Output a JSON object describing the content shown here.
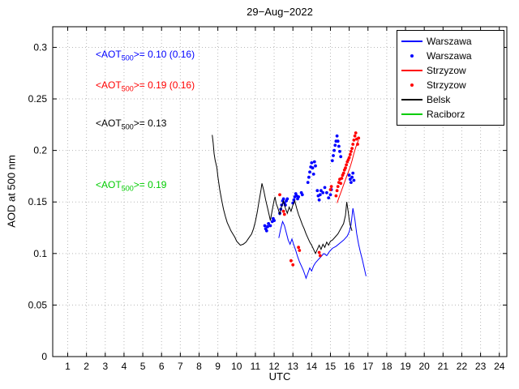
{
  "chart_data": {
    "type": "line",
    "title": "29−Aug−2022",
    "xlabel": "UTC",
    "ylabel": "AOD at 500 nm",
    "xlim": [
      0.2,
      24.4
    ],
    "ylim": [
      0,
      0.32
    ],
    "xticks": [
      1,
      2,
      3,
      4,
      5,
      6,
      7,
      8,
      9,
      10,
      11,
      12,
      13,
      14,
      15,
      16,
      17,
      18,
      19,
      20,
      21,
      22,
      23,
      24
    ],
    "yticks": [
      0,
      0.05,
      0.1,
      0.15,
      0.2,
      0.25,
      0.3
    ],
    "ytick_labels": [
      "0",
      "0.05",
      "0.1",
      "0.15",
      "0.2",
      "0.25",
      "0.3"
    ],
    "grid": true,
    "legend_position": "top-right",
    "series": [
      {
        "name": "Warszawa",
        "style": "line",
        "color": "#0000ff",
        "points": [
          [
            12.25,
            0.115
          ],
          [
            12.35,
            0.124
          ],
          [
            12.45,
            0.131
          ],
          [
            12.55,
            0.127
          ],
          [
            12.65,
            0.12
          ],
          [
            12.75,
            0.113
          ],
          [
            12.85,
            0.109
          ],
          [
            12.95,
            0.114
          ],
          [
            13.05,
            0.108
          ],
          [
            13.15,
            0.103
          ],
          [
            13.25,
            0.097
          ],
          [
            13.35,
            0.092
          ],
          [
            13.45,
            0.088
          ],
          [
            13.55,
            0.084
          ],
          [
            13.65,
            0.079
          ],
          [
            13.7,
            0.076
          ],
          [
            13.8,
            0.081
          ],
          [
            13.9,
            0.086
          ],
          [
            14.0,
            0.083
          ],
          [
            14.1,
            0.088
          ],
          [
            14.2,
            0.091
          ],
          [
            14.35,
            0.094
          ],
          [
            14.5,
            0.097
          ],
          [
            14.65,
            0.1
          ],
          [
            14.8,
            0.098
          ],
          [
            14.95,
            0.102
          ],
          [
            15.1,
            0.105
          ],
          [
            15.3,
            0.107
          ],
          [
            15.5,
            0.11
          ],
          [
            15.7,
            0.113
          ],
          [
            15.9,
            0.117
          ],
          [
            16.0,
            0.121
          ],
          [
            16.1,
            0.128
          ],
          [
            16.2,
            0.144
          ],
          [
            16.3,
            0.133
          ],
          [
            16.4,
            0.119
          ],
          [
            16.5,
            0.109
          ],
          [
            16.6,
            0.101
          ],
          [
            16.7,
            0.094
          ],
          [
            16.8,
            0.086
          ],
          [
            16.9,
            0.078
          ]
        ]
      },
      {
        "name": "Warszawa",
        "style": "scatter",
        "color": "#0000ff",
        "points": [
          [
            11.5,
            0.127
          ],
          [
            11.55,
            0.124
          ],
          [
            11.6,
            0.122
          ],
          [
            11.65,
            0.126
          ],
          [
            11.7,
            0.129
          ],
          [
            11.8,
            0.127
          ],
          [
            11.9,
            0.131
          ],
          [
            11.95,
            0.134
          ],
          [
            12.0,
            0.132
          ],
          [
            12.3,
            0.139
          ],
          [
            12.35,
            0.143
          ],
          [
            12.4,
            0.147
          ],
          [
            12.45,
            0.151
          ],
          [
            12.5,
            0.153
          ],
          [
            12.55,
            0.149
          ],
          [
            12.6,
            0.147
          ],
          [
            12.65,
            0.151
          ],
          [
            12.7,
            0.153
          ],
          [
            13.0,
            0.149
          ],
          [
            13.05,
            0.152
          ],
          [
            13.1,
            0.155
          ],
          [
            13.15,
            0.158
          ],
          [
            13.2,
            0.156
          ],
          [
            13.25,
            0.153
          ],
          [
            13.3,
            0.155
          ],
          [
            13.45,
            0.159
          ],
          [
            13.5,
            0.157
          ],
          [
            13.8,
            0.169
          ],
          [
            13.85,
            0.174
          ],
          [
            13.9,
            0.179
          ],
          [
            13.95,
            0.184
          ],
          [
            14.0,
            0.188
          ],
          [
            14.05,
            0.183
          ],
          [
            14.1,
            0.177
          ],
          [
            14.15,
            0.189
          ],
          [
            14.2,
            0.185
          ],
          [
            14.3,
            0.161
          ],
          [
            14.35,
            0.156
          ],
          [
            14.4,
            0.152
          ],
          [
            14.45,
            0.157
          ],
          [
            14.5,
            0.161
          ],
          [
            14.6,
            0.159
          ],
          [
            14.7,
            0.164
          ],
          [
            14.8,
            0.159
          ],
          [
            14.9,
            0.154
          ],
          [
            15.0,
            0.157
          ],
          [
            15.05,
            0.162
          ],
          [
            15.1,
            0.19
          ],
          [
            15.15,
            0.195
          ],
          [
            15.2,
            0.2
          ],
          [
            15.25,
            0.205
          ],
          [
            15.3,
            0.209
          ],
          [
            15.35,
            0.214
          ],
          [
            15.4,
            0.209
          ],
          [
            15.45,
            0.204
          ],
          [
            15.5,
            0.199
          ],
          [
            15.55,
            0.194
          ],
          [
            16.0,
            0.176
          ],
          [
            16.05,
            0.172
          ],
          [
            16.1,
            0.169
          ],
          [
            16.15,
            0.174
          ],
          [
            16.2,
            0.178
          ],
          [
            16.25,
            0.171
          ]
        ]
      },
      {
        "name": "Strzyzow",
        "style": "line",
        "color": "#ff0000",
        "points": [
          [
            15.35,
            0.149
          ],
          [
            15.45,
            0.154
          ],
          [
            15.55,
            0.159
          ],
          [
            15.65,
            0.164
          ],
          [
            15.75,
            0.169
          ],
          [
            15.85,
            0.174
          ],
          [
            15.95,
            0.179
          ],
          [
            16.05,
            0.184
          ],
          [
            16.15,
            0.19
          ],
          [
            16.25,
            0.197
          ],
          [
            16.35,
            0.203
          ],
          [
            16.45,
            0.208
          ],
          [
            16.5,
            0.21
          ]
        ]
      },
      {
        "name": "Strzyzow",
        "style": "scatter",
        "color": "#ff0000",
        "points": [
          [
            12.3,
            0.157
          ],
          [
            12.5,
            0.141
          ],
          [
            12.55,
            0.138
          ],
          [
            12.9,
            0.093
          ],
          [
            13.0,
            0.089
          ],
          [
            13.3,
            0.106
          ],
          [
            13.35,
            0.103
          ],
          [
            14.4,
            0.101
          ],
          [
            14.45,
            0.098
          ],
          [
            15.0,
            0.162
          ],
          [
            15.05,
            0.165
          ],
          [
            15.3,
            0.156
          ],
          [
            15.35,
            0.161
          ],
          [
            15.4,
            0.165
          ],
          [
            15.45,
            0.169
          ],
          [
            15.5,
            0.172
          ],
          [
            15.55,
            0.168
          ],
          [
            15.6,
            0.173
          ],
          [
            15.65,
            0.176
          ],
          [
            15.7,
            0.178
          ],
          [
            15.75,
            0.181
          ],
          [
            15.8,
            0.183
          ],
          [
            15.85,
            0.186
          ],
          [
            15.9,
            0.189
          ],
          [
            15.95,
            0.191
          ],
          [
            16.0,
            0.193
          ],
          [
            16.05,
            0.196
          ],
          [
            16.1,
            0.199
          ],
          [
            16.15,
            0.202
          ],
          [
            16.2,
            0.206
          ],
          [
            16.25,
            0.21
          ],
          [
            16.3,
            0.214
          ],
          [
            16.35,
            0.217
          ],
          [
            16.4,
            0.211
          ],
          [
            16.45,
            0.206
          ],
          [
            16.5,
            0.212
          ]
        ]
      },
      {
        "name": "Belsk",
        "style": "line",
        "color": "#000000",
        "points": [
          [
            8.7,
            0.215
          ],
          [
            8.75,
            0.207
          ],
          [
            8.8,
            0.197
          ],
          [
            8.85,
            0.191
          ],
          [
            8.95,
            0.183
          ],
          [
            9.0,
            0.175
          ],
          [
            9.1,
            0.162
          ],
          [
            9.2,
            0.152
          ],
          [
            9.3,
            0.143
          ],
          [
            9.4,
            0.136
          ],
          [
            9.5,
            0.13
          ],
          [
            9.6,
            0.126
          ],
          [
            9.7,
            0.122
          ],
          [
            9.8,
            0.119
          ],
          [
            9.9,
            0.116
          ],
          [
            10.0,
            0.112
          ],
          [
            10.1,
            0.11
          ],
          [
            10.2,
            0.108
          ],
          [
            10.35,
            0.109
          ],
          [
            10.5,
            0.111
          ],
          [
            10.65,
            0.115
          ],
          [
            10.8,
            0.119
          ],
          [
            10.9,
            0.124
          ],
          [
            11.0,
            0.131
          ],
          [
            11.1,
            0.14
          ],
          [
            11.2,
            0.151
          ],
          [
            11.3,
            0.162
          ],
          [
            11.35,
            0.168
          ],
          [
            11.45,
            0.161
          ],
          [
            11.55,
            0.152
          ],
          [
            11.65,
            0.144
          ],
          [
            11.75,
            0.136
          ],
          [
            11.8,
            0.132
          ],
          [
            11.9,
            0.142
          ],
          [
            12.0,
            0.152
          ],
          [
            12.05,
            0.155
          ],
          [
            12.1,
            0.149
          ],
          [
            12.2,
            0.144
          ],
          [
            12.3,
            0.138
          ],
          [
            12.4,
            0.146
          ],
          [
            12.5,
            0.151
          ],
          [
            12.6,
            0.144
          ],
          [
            12.7,
            0.139
          ],
          [
            12.8,
            0.145
          ],
          [
            12.9,
            0.141
          ],
          [
            13.0,
            0.147
          ],
          [
            13.1,
            0.151
          ],
          [
            13.2,
            0.144
          ],
          [
            13.3,
            0.138
          ],
          [
            13.4,
            0.133
          ],
          [
            13.5,
            0.128
          ],
          [
            13.6,
            0.124
          ],
          [
            13.7,
            0.119
          ],
          [
            13.8,
            0.115
          ],
          [
            13.9,
            0.111
          ],
          [
            14.0,
            0.108
          ],
          [
            14.1,
            0.104
          ],
          [
            14.2,
            0.1
          ],
          [
            14.3,
            0.104
          ],
          [
            14.4,
            0.108
          ],
          [
            14.5,
            0.104
          ],
          [
            14.6,
            0.109
          ],
          [
            14.7,
            0.106
          ],
          [
            14.8,
            0.111
          ],
          [
            14.9,
            0.108
          ],
          [
            15.0,
            0.112
          ],
          [
            15.1,
            0.113
          ],
          [
            15.25,
            0.116
          ],
          [
            15.4,
            0.119
          ],
          [
            15.55,
            0.124
          ],
          [
            15.7,
            0.129
          ],
          [
            15.8,
            0.137
          ],
          [
            15.87,
            0.15
          ],
          [
            15.95,
            0.14
          ],
          [
            16.0,
            0.133
          ],
          [
            16.05,
            0.128
          ],
          [
            16.1,
            0.125
          ],
          [
            16.15,
            0.122
          ]
        ]
      },
      {
        "name": "Raciborz",
        "style": "line",
        "color": "#00cc00",
        "points": []
      }
    ]
  },
  "legend": {
    "items": [
      {
        "label": "Warszawa",
        "marker": "line",
        "color": "#0000ff"
      },
      {
        "label": "Warszawa",
        "marker": "dot",
        "color": "#0000ff"
      },
      {
        "label": "Strzyzow",
        "marker": "line",
        "color": "#ff0000"
      },
      {
        "label": "Strzyzow",
        "marker": "dot",
        "color": "#ff0000"
      },
      {
        "label": "Belsk",
        "marker": "line",
        "color": "#000000"
      },
      {
        "label": "Raciborz",
        "marker": "line",
        "color": "#00cc00"
      }
    ]
  },
  "annotations": [
    {
      "name": "warszawa",
      "color": "#0000ff",
      "prefix": "<AOT",
      "sub": "500",
      "suffix": ">= 0.10 (0.16)"
    },
    {
      "name": "strzyzow",
      "color": "#ff0000",
      "prefix": "<AOT",
      "sub": "500",
      "suffix": ">= 0.19 (0.16)"
    },
    {
      "name": "belsk",
      "color": "#000000",
      "prefix": "<AOT",
      "sub": "500",
      "suffix": ">= 0.13"
    },
    {
      "name": "raciborz",
      "color": "#00cc00",
      "prefix": "<AOT",
      "sub": "500",
      "suffix": ">= 0.19"
    }
  ]
}
